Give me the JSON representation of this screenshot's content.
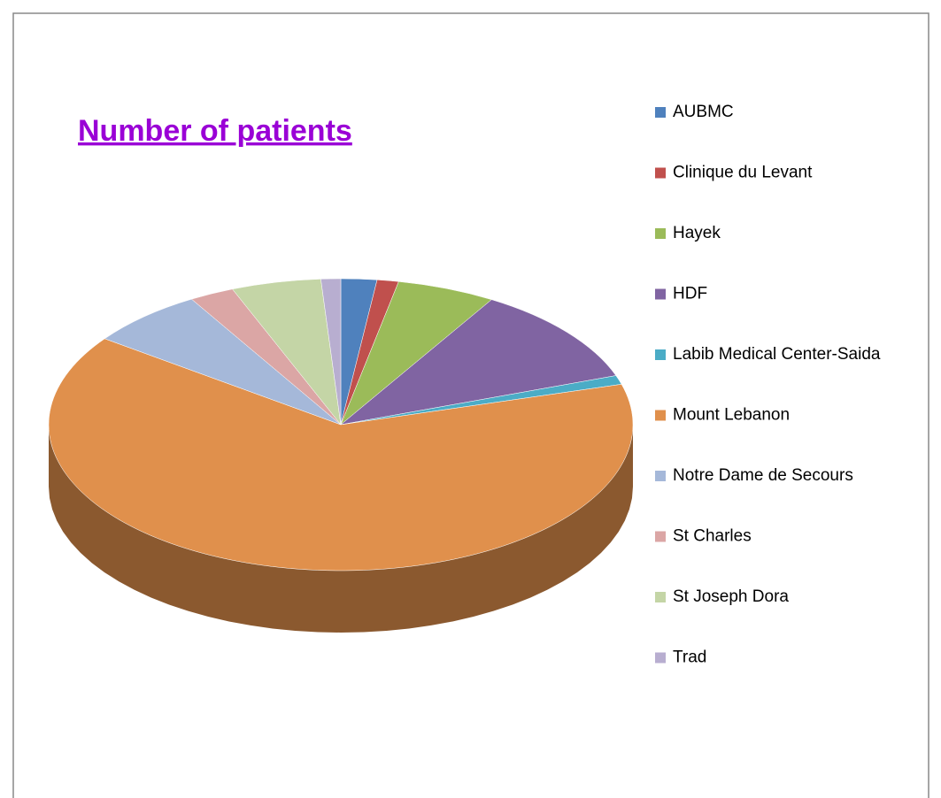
{
  "chart_data": {
    "type": "pie",
    "title": "Number of patients",
    "categories": [
      "AUBMC",
      "Clinique du Levant",
      "Hayek",
      "HDF",
      "Labib Medical Center-Saida",
      "Mount Lebanon",
      "Notre Dame de Secours",
      "St Charles",
      "St Joseph Dora",
      "Trad"
    ],
    "values": [
      2,
      1.2,
      5.5,
      11,
      1,
      65,
      6.5,
      2.5,
      5,
      1.1
    ],
    "colors": [
      "#4f81bd",
      "#c0504d",
      "#9bbb59",
      "#8064a2",
      "#4bacc6",
      "#e0904c",
      "#a5b8d9",
      "#dba6a5",
      "#c4d5a6",
      "#b8aed0"
    ],
    "legend": "right"
  }
}
